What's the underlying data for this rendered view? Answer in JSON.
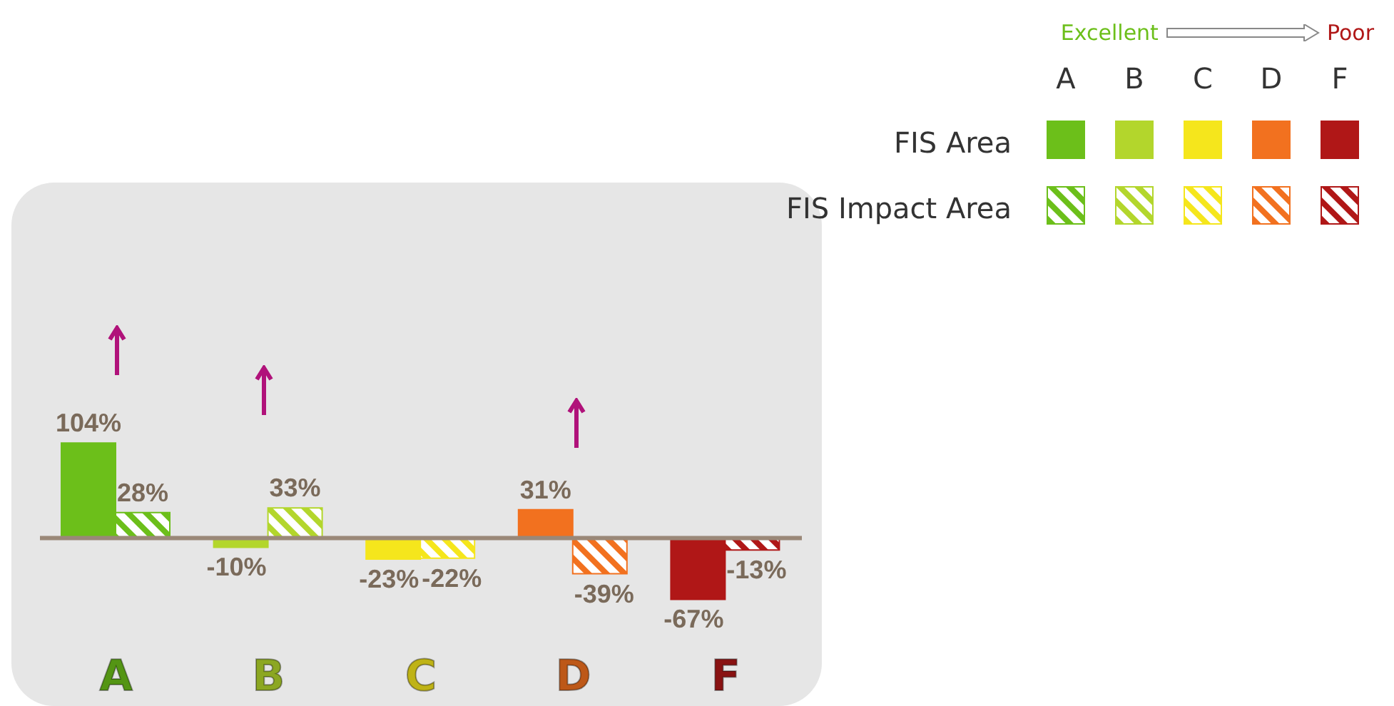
{
  "chart_data": {
    "type": "bar",
    "categories": [
      "A",
      "B",
      "C",
      "D",
      "F"
    ],
    "series": [
      {
        "name": "FIS Area",
        "colors": [
          "#6cbf1a",
          "#b3d62c",
          "#f5e61c",
          "#f2711f",
          "#b01717"
        ],
        "values": [
          104,
          -10,
          -23,
          31,
          -67
        ],
        "value_labels": [
          "104%",
          "-10%",
          "-23%",
          "31%",
          "-67%"
        ]
      },
      {
        "name": "FIS Impact Area",
        "colors": [
          "#6cbf1a",
          "#b3d62c",
          "#f5e61c",
          "#f2711f",
          "#b01717"
        ],
        "values": [
          28,
          33,
          -22,
          -39,
          -13
        ],
        "value_labels": [
          "28%",
          "33%",
          "-22%",
          "-39%",
          "-13%"
        ]
      }
    ],
    "legend": "top right",
    "annotations": [
      "Excellent",
      "Poor"
    ]
  }
}
